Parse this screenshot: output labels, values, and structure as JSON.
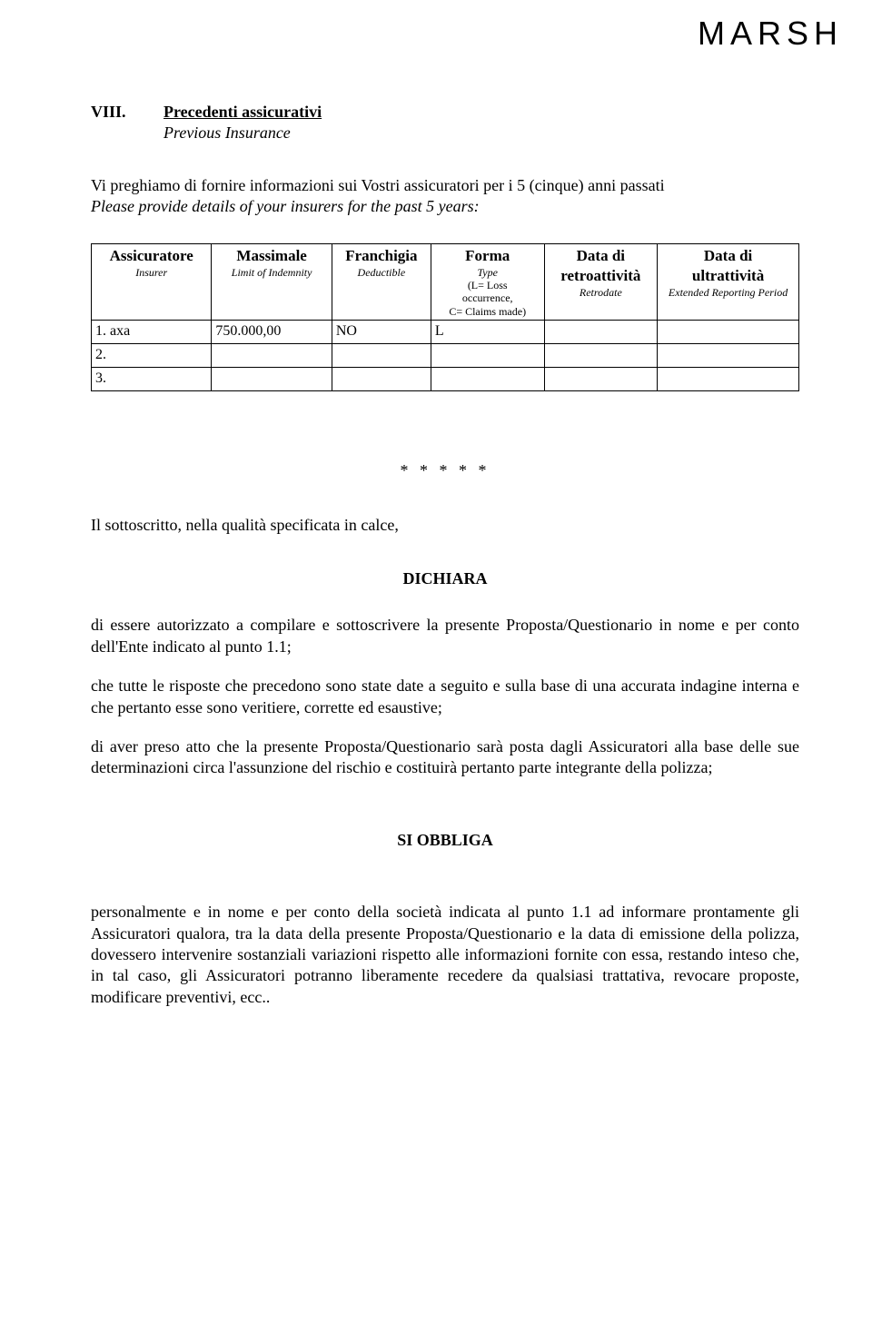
{
  "brand": "MARSH",
  "section": {
    "roman": "VIII.",
    "title": "Precedenti assicurativi",
    "subtitle": "Previous Insurance"
  },
  "instruction": {
    "main": "Vi preghiamo di fornire informazioni sui Vostri assicuratori per i 5 (cinque) anni passati",
    "sub": "Please provide details of your insurers for the past 5 years:"
  },
  "table": {
    "headers": {
      "insurer": {
        "main": "Assicuratore",
        "sub": "Insurer"
      },
      "limit": {
        "main": "Massimale",
        "sub": "Limit of Indemnity"
      },
      "deduct": {
        "main": "Franchigia",
        "sub": "Deductible"
      },
      "form": {
        "main": "Forma",
        "sub": "Type",
        "sub2a": "(L= Loss",
        "sub2b": "occurrence,",
        "sub2c": "C= Claims made)"
      },
      "retro": {
        "main": "Data di",
        "main2": "retroattività",
        "sub": "Retrodate"
      },
      "ext": {
        "main": "Data di",
        "main2": "ultrattività",
        "sub": "Extended Reporting Period"
      }
    },
    "rows": [
      {
        "label": "1. axa",
        "limit": "750.000,00",
        "deduct": "NO",
        "form": "L",
        "retro": "",
        "ext": ""
      },
      {
        "label": "2.",
        "limit": "",
        "deduct": "",
        "form": "",
        "retro": "",
        "ext": ""
      },
      {
        "label": "3.",
        "limit": "",
        "deduct": "",
        "form": "",
        "retro": "",
        "ext": ""
      }
    ]
  },
  "stars": "* * * * *",
  "declare_intro": "Il sottoscritto, nella qualità specificata in calce,",
  "declare_heading": "DICHIARA",
  "paragraphs": {
    "p1": "di essere autorizzato a compilare e sottoscrivere la presente Proposta/Questionario in nome e per conto dell'Ente  indicato al punto 1.1;",
    "p2": "che tutte le risposte che precedono sono state date a seguito e sulla base di una accurata indagine interna e che pertanto esse sono veritiere, corrette ed esaustive;",
    "p3": "di aver preso atto che la presente Proposta/Questionario sarà posta dagli Assicuratori alla base delle sue determinazioni circa l'assunzione del rischio e costituirà pertanto parte integrante della polizza;"
  },
  "si_obbliga": "SI OBBLIGA",
  "final_para": "personalmente e in nome e per conto della società indicata al punto 1.1 ad informare prontamente gli Assicuratori qualora, tra la data della presente Proposta/Questionario e la data di emissione della polizza, dovessero intervenire sostanziali variazioni rispetto alle informazioni fornite con essa, restando inteso che, in tal caso, gli Assicuratori potranno liberamente recedere da qualsiasi trattativa, revocare proposte, modificare preventivi, ecc.."
}
